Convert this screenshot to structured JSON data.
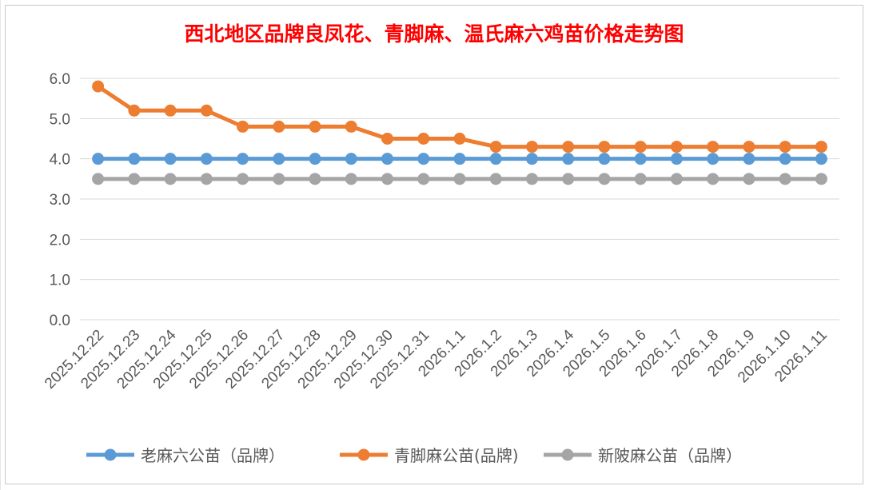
{
  "chart_data": {
    "type": "line",
    "title": "西北地区品牌良凤花、青脚麻、温氏麻六鸡苗价格走势图",
    "title_color": "#ff0000",
    "xlabel": "",
    "ylabel": "",
    "ylim": [
      0,
      6.0
    ],
    "y_ticks": [
      "0.0",
      "1.0",
      "2.0",
      "3.0",
      "4.0",
      "5.0",
      "6.0"
    ],
    "grid": true,
    "legend_position": "bottom",
    "categories": [
      "2025.12.22",
      "2025.12.23",
      "2025.12.24",
      "2025.12.25",
      "2025.12.26",
      "2025.12.27",
      "2025.12.28",
      "2025.12.29",
      "2025.12.30",
      "2025.12.31",
      "2026.1.1",
      "2026.1.2",
      "2026.1.3",
      "2026.1.4",
      "2026.1.5",
      "2026.1.6",
      "2026.1.7",
      "2026.1.8",
      "2026.1.9",
      "2026.1.10",
      "2026.1.11"
    ],
    "series": [
      {
        "name": "老麻六公苗（品牌）",
        "color": "#5b9bd5",
        "values": [
          4.0,
          4.0,
          4.0,
          4.0,
          4.0,
          4.0,
          4.0,
          4.0,
          4.0,
          4.0,
          4.0,
          4.0,
          4.0,
          4.0,
          4.0,
          4.0,
          4.0,
          4.0,
          4.0,
          4.0,
          4.0
        ]
      },
      {
        "name": "青脚麻公苗(品牌)",
        "color": "#ed7d31",
        "values": [
          5.8,
          5.2,
          5.2,
          5.2,
          4.8,
          4.8,
          4.8,
          4.8,
          4.5,
          4.5,
          4.5,
          4.3,
          4.3,
          4.3,
          4.3,
          4.3,
          4.3,
          4.3,
          4.3,
          4.3,
          4.3
        ]
      },
      {
        "name": "新陂麻公苗（品牌）",
        "color": "#a5a5a5",
        "values": [
          3.5,
          3.5,
          3.5,
          3.5,
          3.5,
          3.5,
          3.5,
          3.5,
          3.5,
          3.5,
          3.5,
          3.5,
          3.5,
          3.5,
          3.5,
          3.5,
          3.5,
          3.5,
          3.5,
          3.5,
          3.5
        ]
      }
    ]
  }
}
